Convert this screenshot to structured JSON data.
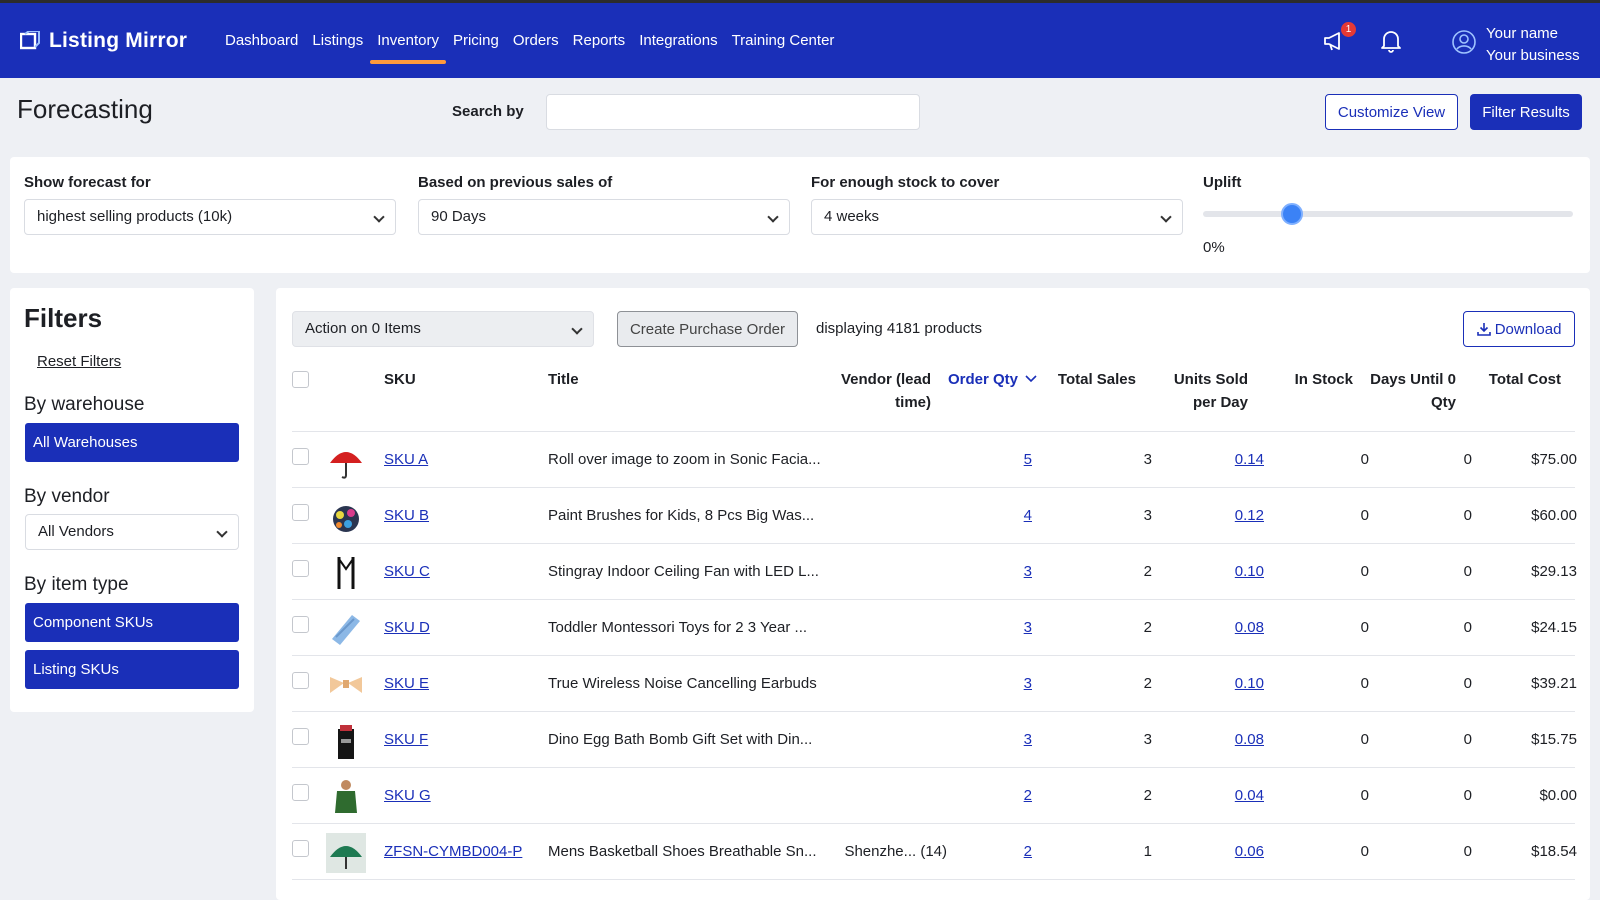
{
  "app": {
    "name": "Listing Mirror"
  },
  "nav": {
    "items": [
      "Dashboard",
      "Listings",
      "Inventory",
      "Pricing",
      "Orders",
      "Reports",
      "Integrations",
      "Training Center"
    ],
    "active": "Inventory",
    "announcement_badge": "1"
  },
  "user": {
    "name": "Your name",
    "business": "Your business"
  },
  "page": {
    "title": "Forecasting",
    "search_label": "Search by",
    "search_value": "",
    "customize_view": "Customize View",
    "filter_results": "Filter Results"
  },
  "forecast": {
    "show_for_label": "Show forecast for",
    "show_for_value": "highest selling products (10k)",
    "based_on_label": "Based on previous sales of",
    "based_on_value": "90 Days",
    "stock_cover_label": "For enough stock to cover",
    "stock_cover_value": "4 weeks",
    "uplift_label": "Uplift",
    "uplift_value": "0%",
    "uplift_slider_fraction": 0.24
  },
  "filters": {
    "title": "Filters",
    "reset": "Reset Filters",
    "warehouse_label": "By warehouse",
    "warehouse_value": "All Warehouses",
    "vendor_label": "By vendor",
    "vendor_value": "All Vendors",
    "item_type_label": "By item type",
    "item_types": [
      "Component SKUs",
      "Listing SKUs"
    ]
  },
  "table": {
    "action_select": "Action on 0 Items",
    "create_po": "Create Purchase Order",
    "displaying": "displaying 4181 products",
    "download": "Download",
    "columns": {
      "sku": "SKU",
      "title": "Title",
      "vendor_1": "Vendor (lead",
      "vendor_2": "time)",
      "order_qty": "Order Qty",
      "total_sales": "Total Sales",
      "units_1": "Units Sold",
      "units_2": "per Day",
      "in_stock": "In Stock",
      "days_1": "Days Until 0",
      "days_2": "Qty",
      "total_cost": "Total Cost"
    },
    "rows": [
      {
        "thumb": "red-umbrella",
        "sku": "SKU A",
        "title": "Roll over image to zoom in Sonic Facia...",
        "vendor": "",
        "order_qty": "5",
        "total_sales": "3",
        "units_per_day": "0.14",
        "in_stock": "0",
        "days_until_zero": "0",
        "total_cost": "$75.00"
      },
      {
        "thumb": "paint-brushes",
        "sku": "SKU B",
        "title": "Paint Brushes for Kids, 8 Pcs Big Was...",
        "vendor": "",
        "order_qty": "4",
        "total_sales": "3",
        "units_per_day": "0.12",
        "in_stock": "0",
        "days_until_zero": "0",
        "total_cost": "$60.00"
      },
      {
        "thumb": "suspenders",
        "sku": "SKU C",
        "title": "Stingray Indoor Ceiling Fan with LED L...",
        "vendor": "",
        "order_qty": "3",
        "total_sales": "2",
        "units_per_day": "0.10",
        "in_stock": "0",
        "days_until_zero": "0",
        "total_cost": "$29.13"
      },
      {
        "thumb": "blue-tie",
        "sku": "SKU D",
        "title": "Toddler Montessori Toys for 2 3 Year ...",
        "vendor": "",
        "order_qty": "3",
        "total_sales": "2",
        "units_per_day": "0.08",
        "in_stock": "0",
        "days_until_zero": "0",
        "total_cost": "$24.15"
      },
      {
        "thumb": "bow-tie",
        "sku": "SKU E",
        "title": "True Wireless Noise Cancelling Earbuds",
        "vendor": "",
        "order_qty": "3",
        "total_sales": "2",
        "units_per_day": "0.10",
        "in_stock": "0",
        "days_until_zero": "0",
        "total_cost": "$39.21"
      },
      {
        "thumb": "black-box",
        "sku": "SKU F",
        "title": "Dino Egg Bath Bomb Gift Set with Din...",
        "vendor": "",
        "order_qty": "3",
        "total_sales": "3",
        "units_per_day": "0.08",
        "in_stock": "0",
        "days_until_zero": "0",
        "total_cost": "$15.75"
      },
      {
        "thumb": "green-shirt",
        "sku": "SKU G",
        "title": "",
        "vendor": "",
        "order_qty": "2",
        "total_sales": "2",
        "units_per_day": "0.04",
        "in_stock": "0",
        "days_until_zero": "0",
        "total_cost": "$0.00"
      },
      {
        "thumb": "green-umbrella",
        "sku": "ZFSN-CYMBD004-P",
        "title": "Mens Basketball Shoes Breathable Sn...",
        "vendor": "Shenzhe... (14)",
        "order_qty": "2",
        "total_sales": "1",
        "units_per_day": "0.06",
        "in_stock": "0",
        "days_until_zero": "0",
        "total_cost": "$18.54"
      }
    ]
  },
  "colors": {
    "brand": "#1a2fb8",
    "accent": "#ff9a3c",
    "slider": "#3b82f6"
  }
}
